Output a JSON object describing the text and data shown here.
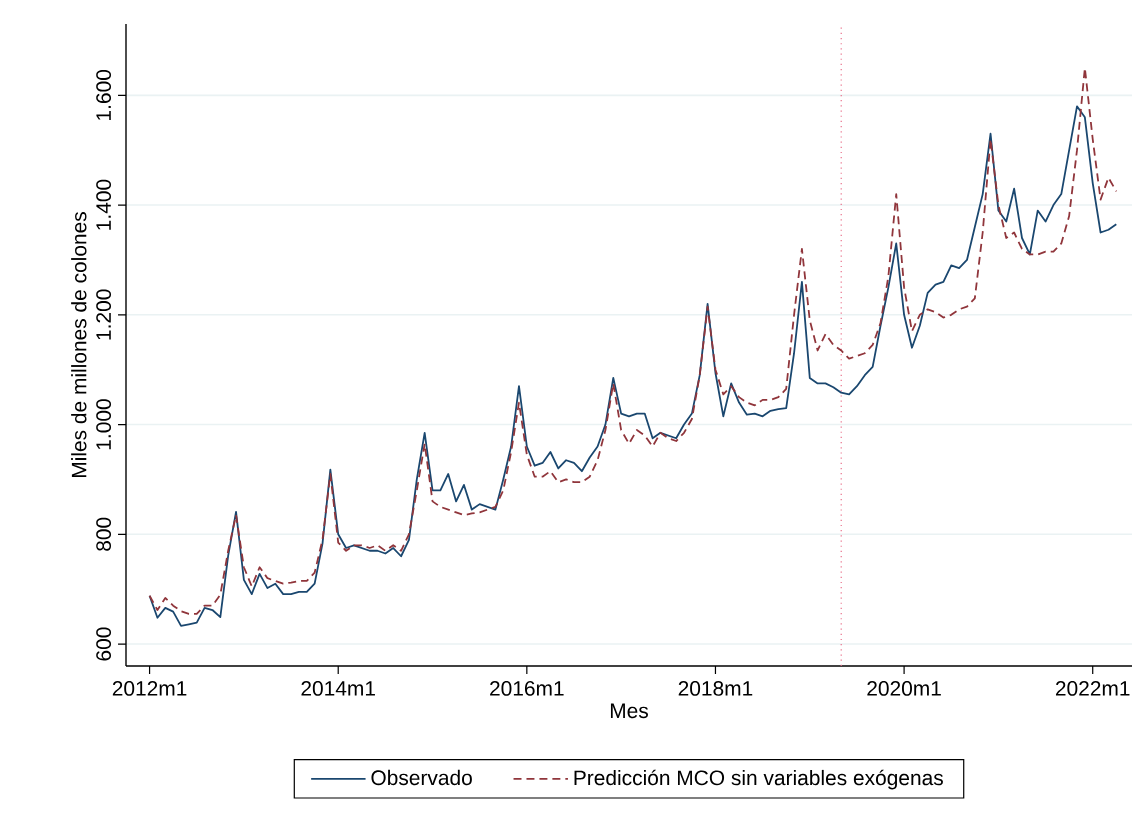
{
  "chart_data": {
    "type": "line",
    "xlabel": "Mes",
    "ylabel": "Miles de millones de colones",
    "x": [
      "2012-01",
      "2012-02",
      "2012-03",
      "2012-04",
      "2012-05",
      "2012-06",
      "2012-07",
      "2012-08",
      "2012-09",
      "2012-10",
      "2012-11",
      "2012-12",
      "2013-01",
      "2013-02",
      "2013-03",
      "2013-04",
      "2013-05",
      "2013-06",
      "2013-07",
      "2013-08",
      "2013-09",
      "2013-10",
      "2013-11",
      "2013-12",
      "2014-01",
      "2014-02",
      "2014-03",
      "2014-04",
      "2014-05",
      "2014-06",
      "2014-07",
      "2014-08",
      "2014-09",
      "2014-10",
      "2014-11",
      "2014-12",
      "2015-01",
      "2015-02",
      "2015-03",
      "2015-04",
      "2015-05",
      "2015-06",
      "2015-07",
      "2015-08",
      "2015-09",
      "2015-10",
      "2015-11",
      "2015-12",
      "2016-01",
      "2016-02",
      "2016-03",
      "2016-04",
      "2016-05",
      "2016-06",
      "2016-07",
      "2016-08",
      "2016-09",
      "2016-10",
      "2016-11",
      "2016-12",
      "2017-01",
      "2017-02",
      "2017-03",
      "2017-04",
      "2017-05",
      "2017-06",
      "2017-07",
      "2017-08",
      "2017-09",
      "2017-10",
      "2017-11",
      "2017-12",
      "2018-01",
      "2018-02",
      "2018-03",
      "2018-04",
      "2018-05",
      "2018-06",
      "2018-07",
      "2018-08",
      "2018-09",
      "2018-10",
      "2018-11",
      "2018-12",
      "2019-01",
      "2019-02",
      "2019-03",
      "2019-04",
      "2019-05",
      "2019-06",
      "2019-07",
      "2019-08",
      "2019-09",
      "2019-10",
      "2019-11",
      "2019-12",
      "2020-01",
      "2020-02",
      "2020-03",
      "2020-04",
      "2020-05",
      "2020-06",
      "2020-07",
      "2020-08",
      "2020-09",
      "2020-10",
      "2020-11",
      "2020-12",
      "2021-01",
      "2021-02",
      "2021-03",
      "2021-04",
      "2021-05",
      "2021-06",
      "2021-07",
      "2021-08",
      "2021-09",
      "2021-10",
      "2021-11",
      "2021-12",
      "2022-01",
      "2022-02",
      "2022-03",
      "2022-04"
    ],
    "series": [
      {
        "name": "Observado",
        "color": "#1a476f",
        "line_style": "solid",
        "values": [
          688,
          648,
          666,
          659,
          633,
          636,
          639,
          666,
          662,
          649,
          761,
          841,
          717,
          691,
          728,
          702,
          710,
          691,
          691,
          695,
          695,
          710,
          783,
          918,
          800,
          775,
          780,
          775,
          770,
          770,
          765,
          775,
          760,
          790,
          900,
          985,
          880,
          880,
          910,
          860,
          890,
          845,
          855,
          850,
          845,
          900,
          960,
          1070,
          960,
          925,
          930,
          950,
          920,
          935,
          930,
          915,
          940,
          960,
          1000,
          1085,
          1020,
          1015,
          1020,
          1020,
          975,
          985,
          980,
          975,
          1000,
          1020,
          1090,
          1220,
          1094,
          1015,
          1075,
          1040,
          1018,
          1020,
          1015,
          1025,
          1028,
          1030,
          1130,
          1260,
          1085,
          1075,
          1075,
          1068,
          1058,
          1055,
          1070,
          1090,
          1105,
          1180,
          1250,
          1330,
          1200,
          1140,
          1180,
          1240,
          1255,
          1260,
          1290,
          1285,
          1300,
          1360,
          1420,
          1530,
          1390,
          1370,
          1430,
          1340,
          1310,
          1390,
          1370,
          1400,
          1420,
          1500,
          1580,
          1560,
          1440,
          1350,
          1355,
          1365
        ]
      },
      {
        "name": "Predicción MCO sin variables exógenas",
        "color": "#90353b",
        "line_style": "dashed",
        "values": [
          688,
          662,
          684,
          670,
          660,
          655,
          655,
          670,
          670,
          690,
          770,
          835,
          740,
          705,
          740,
          720,
          715,
          710,
          712,
          715,
          715,
          730,
          790,
          910,
          785,
          770,
          780,
          780,
          775,
          780,
          770,
          780,
          770,
          800,
          880,
          965,
          860,
          850,
          845,
          840,
          835,
          838,
          840,
          845,
          850,
          880,
          950,
          1040,
          945,
          905,
          905,
          915,
          895,
          900,
          895,
          895,
          905,
          935,
          990,
          1075,
          990,
          965,
          990,
          980,
          960,
          985,
          975,
          970,
          985,
          1010,
          1090,
          1215,
          1100,
          1055,
          1070,
          1050,
          1040,
          1035,
          1045,
          1045,
          1050,
          1065,
          1200,
          1320,
          1190,
          1135,
          1165,
          1145,
          1135,
          1120,
          1125,
          1130,
          1145,
          1185,
          1270,
          1420,
          1250,
          1170,
          1200,
          1210,
          1205,
          1195,
          1200,
          1210,
          1215,
          1230,
          1350,
          1520,
          1400,
          1340,
          1350,
          1320,
          1310,
          1310,
          1315,
          1315,
          1330,
          1380,
          1500,
          1650,
          1520,
          1410,
          1450,
          1425
        ]
      }
    ],
    "xlim": [
      "2011-10",
      "2022-06"
    ],
    "xticks": [
      {
        "value": "2012-01",
        "label": "2012m1"
      },
      {
        "value": "2014-01",
        "label": "2014m1"
      },
      {
        "value": "2016-01",
        "label": "2016m1"
      },
      {
        "value": "2018-01",
        "label": "2018m1"
      },
      {
        "value": "2020-01",
        "label": "2020m1"
      },
      {
        "value": "2022-01",
        "label": "2022m1"
      }
    ],
    "ylim": [
      560,
      1730
    ],
    "yticks": [
      600,
      800,
      {
        "value": 1000,
        "label": "1.000"
      },
      {
        "value": 1200,
        "label": "1.200"
      },
      {
        "value": 1400,
        "label": "1.400"
      },
      {
        "value": 1600,
        "label": "1.600"
      }
    ],
    "ref_lines": [
      {
        "axis": "x",
        "value": "2019-05",
        "color": "#e8708a",
        "line_style": "dotted"
      }
    ],
    "grid": "y",
    "legend": "bottom",
    "marker": "none"
  }
}
